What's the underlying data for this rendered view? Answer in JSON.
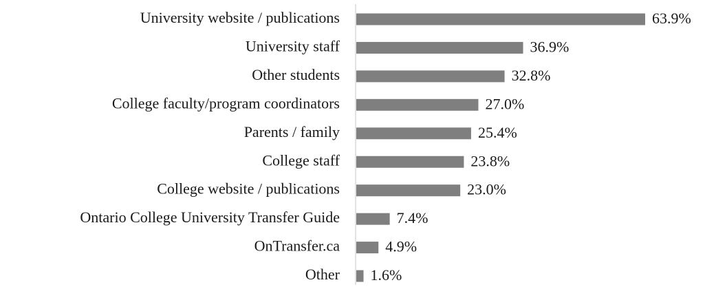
{
  "chart_data": {
    "type": "bar",
    "orientation": "horizontal",
    "categories": [
      "University website / publications",
      "University staff",
      "Other students",
      "College faculty/program coordinators",
      "Parents / family",
      "College staff",
      "College website / publications",
      "Ontario College University Transfer Guide",
      "OnTransfer.ca",
      "Other"
    ],
    "values": [
      63.9,
      36.9,
      32.8,
      27.0,
      25.4,
      23.8,
      23.0,
      7.4,
      4.9,
      1.6
    ],
    "value_labels": [
      "63.9%",
      "36.9%",
      "32.8%",
      "27.0%",
      "25.4%",
      "23.8%",
      "23.0%",
      "7.4%",
      "4.9%",
      "1.6%"
    ],
    "color": "#7f7f7f"
  }
}
